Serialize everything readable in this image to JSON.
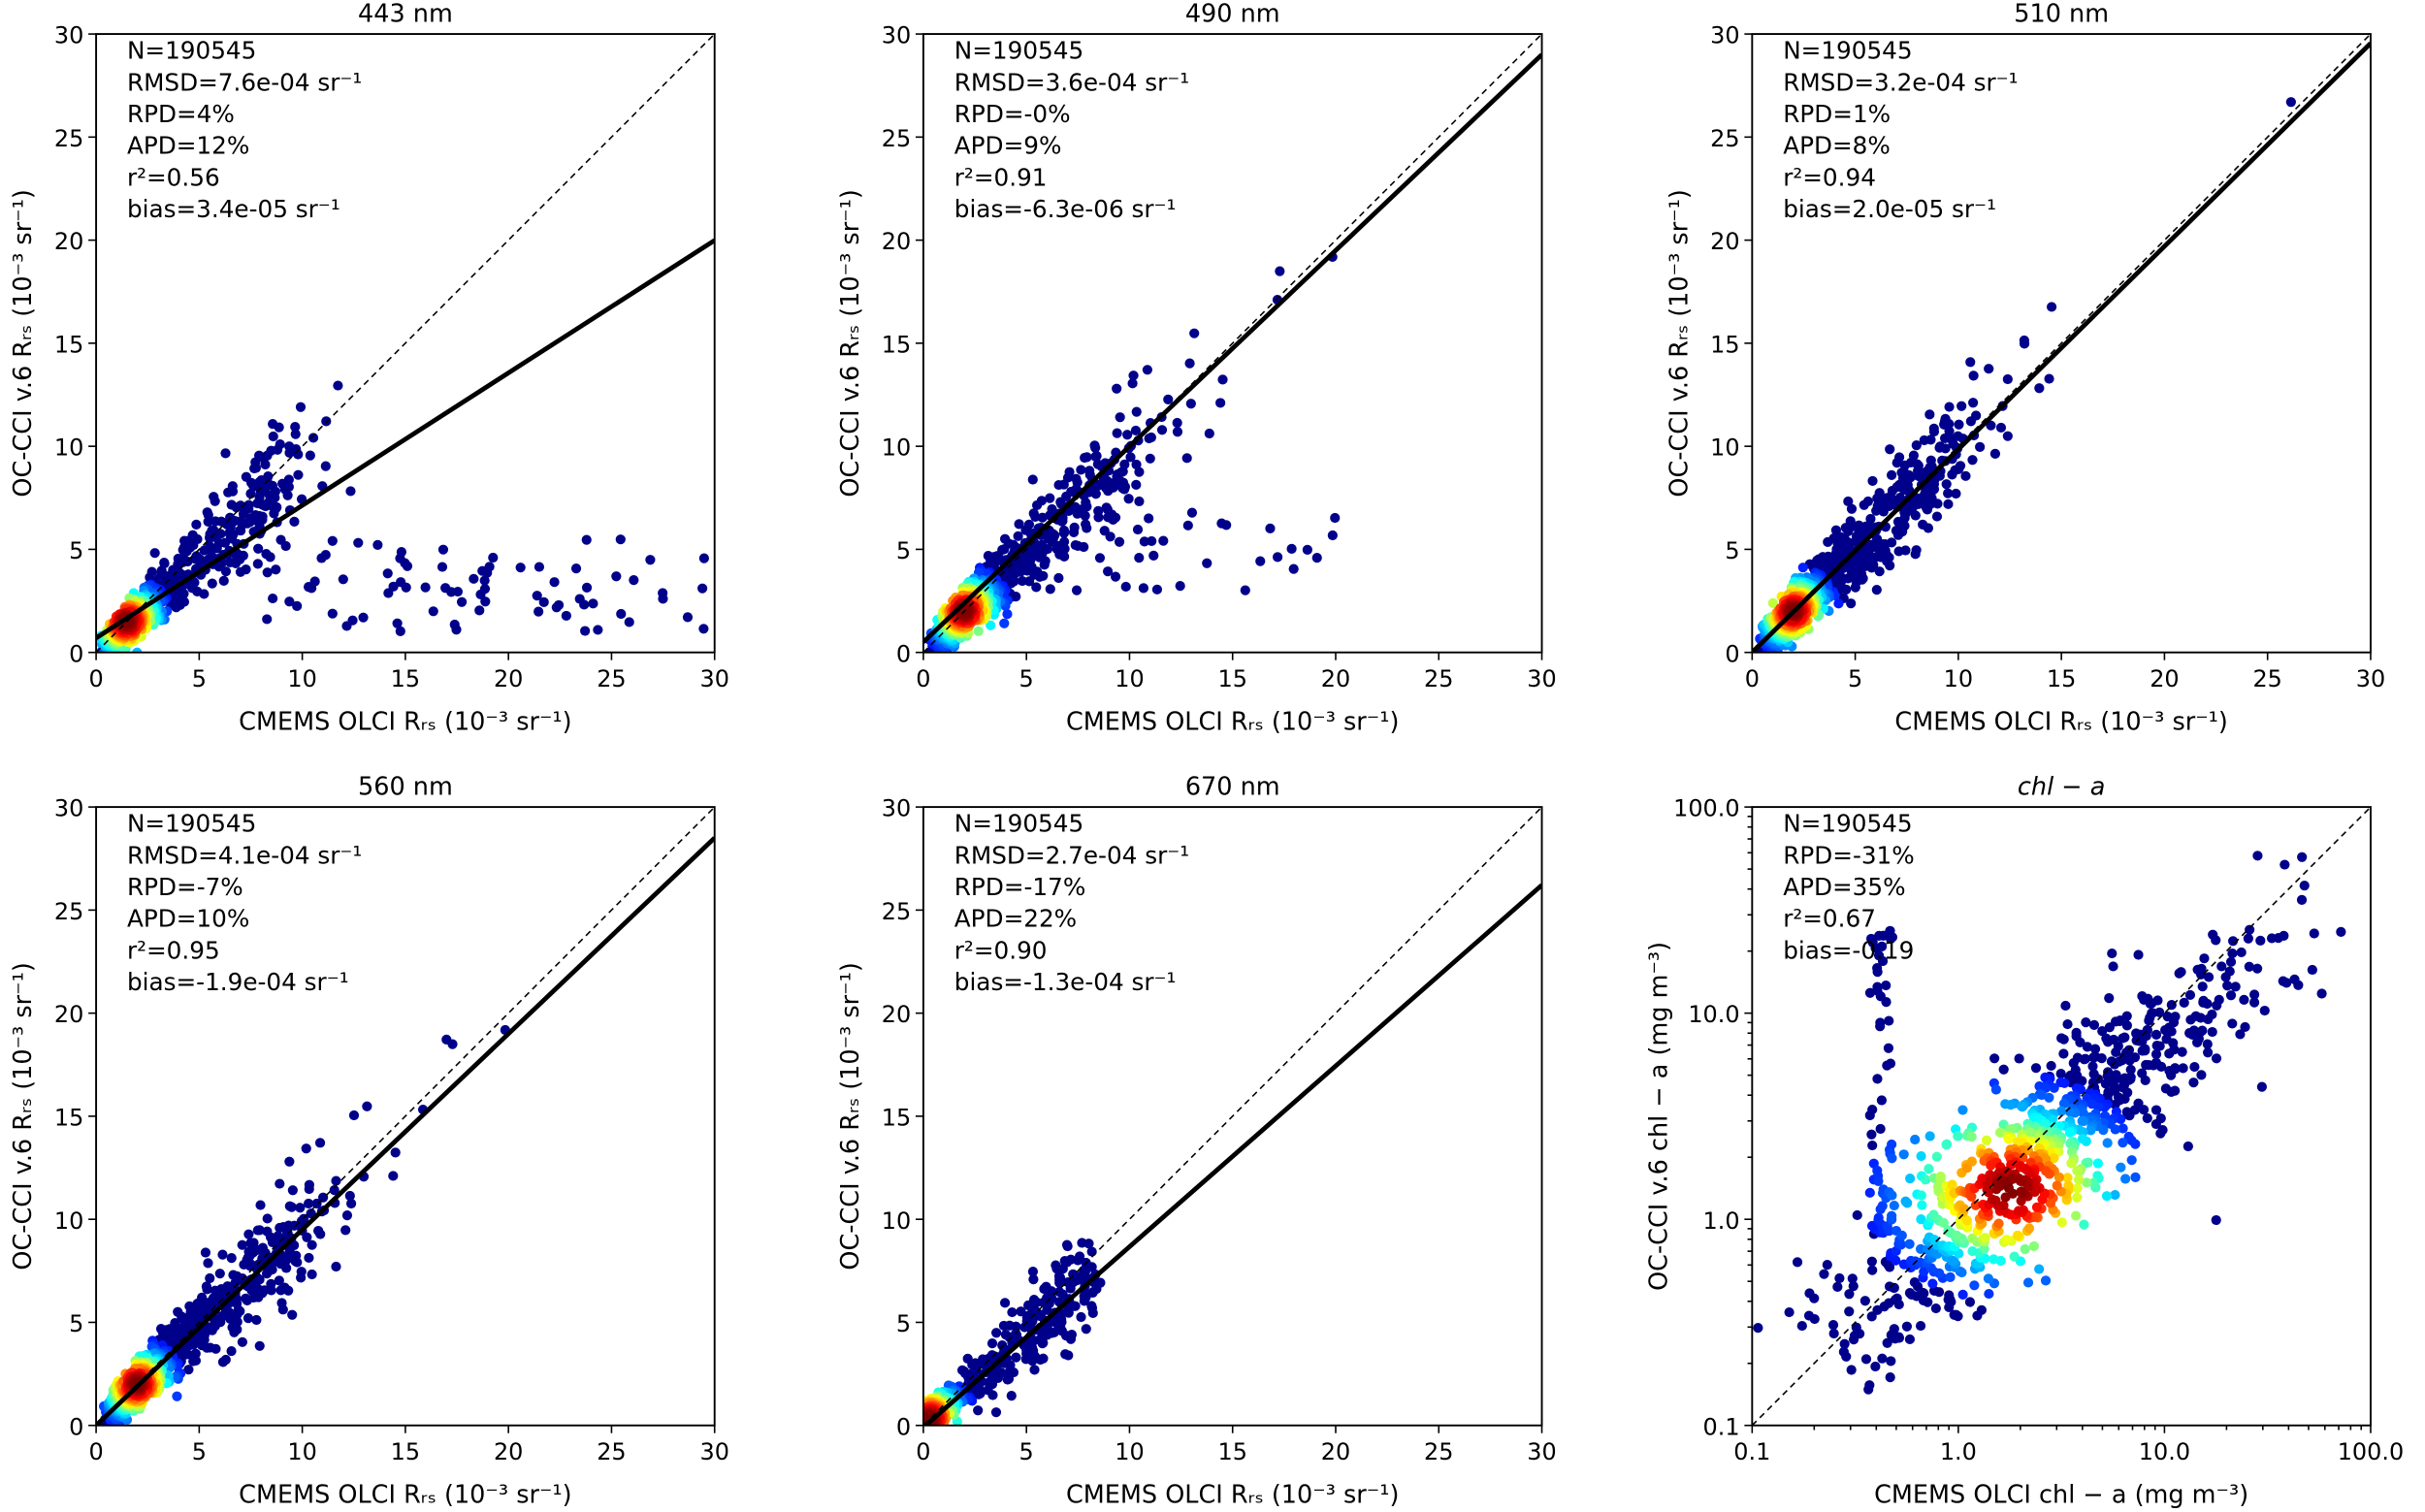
{
  "chart_data": [
    {
      "type": "scatter",
      "title": "443 nm",
      "xlabel": "CMEMS OLCI Rᵣₛ (10⁻³ sr⁻¹)",
      "ylabel": "OC-CCI v.6 Rᵣₛ (10⁻³ sr⁻¹)",
      "scale": "linear",
      "xlim": [
        0,
        30
      ],
      "ylim": [
        0,
        30
      ],
      "xticks": [
        "0",
        "5",
        "10",
        "15",
        "20",
        "25",
        "30"
      ],
      "yticks": [
        "0",
        "5",
        "10",
        "15",
        "20",
        "25",
        "30"
      ],
      "stats": [
        "N=190545",
        "RMSD=7.6e-04 sr⁻¹",
        "RPD=4%",
        "APD=12%",
        "r²=0.56",
        "bias=3.4e-05 sr⁻¹"
      ],
      "fit": {
        "slope": 0.643,
        "intercept": 0.7
      },
      "one_to_one": true,
      "density_center": [
        1.5,
        1.5
      ]
    },
    {
      "type": "scatter",
      "title": "490 nm",
      "xlabel": "CMEMS OLCI Rᵣₛ (10⁻³ sr⁻¹)",
      "ylabel": "OC-CCI v.6 Rᵣₛ (10⁻³ sr⁻¹)",
      "scale": "linear",
      "xlim": [
        0,
        30
      ],
      "ylim": [
        0,
        30
      ],
      "xticks": [
        "0",
        "5",
        "10",
        "15",
        "20",
        "25",
        "30"
      ],
      "yticks": [
        "0",
        "5",
        "10",
        "15",
        "20",
        "25",
        "30"
      ],
      "stats": [
        "N=190545",
        "RMSD=3.6e-04 sr⁻¹",
        "RPD=-0%",
        "APD=9%",
        "r²=0.91",
        "bias=-6.3e-06 sr⁻¹"
      ],
      "fit": {
        "slope": 0.95,
        "intercept": 0.5
      },
      "one_to_one": true,
      "density_center": [
        2.0,
        2.0
      ]
    },
    {
      "type": "scatter",
      "title": "510 nm",
      "xlabel": "CMEMS OLCI Rᵣₛ (10⁻³ sr⁻¹)",
      "ylabel": "OC-CCI v.6 Rᵣₛ (10⁻³ sr⁻¹)",
      "scale": "linear",
      "xlim": [
        0,
        30
      ],
      "ylim": [
        0,
        30
      ],
      "xticks": [
        "0",
        "5",
        "10",
        "15",
        "20",
        "25",
        "30"
      ],
      "yticks": [
        "0",
        "5",
        "10",
        "15",
        "20",
        "25",
        "30"
      ],
      "stats": [
        "N=190545",
        "RMSD=3.2e-04 sr⁻¹",
        "RPD=1%",
        "APD=8%",
        "r²=0.94",
        "bias=2.0e-05 sr⁻¹"
      ],
      "fit": {
        "slope": 0.985,
        "intercept": 0.0
      },
      "one_to_one": true,
      "density_center": [
        2.0,
        2.0
      ]
    },
    {
      "type": "scatter",
      "title": "560 nm",
      "xlabel": "CMEMS OLCI Rᵣₛ (10⁻³ sr⁻¹)",
      "ylabel": "OC-CCI v.6 Rᵣₛ (10⁻³ sr⁻¹)",
      "scale": "linear",
      "xlim": [
        0,
        30
      ],
      "ylim": [
        0,
        30
      ],
      "xticks": [
        "0",
        "5",
        "10",
        "15",
        "20",
        "25",
        "30"
      ],
      "yticks": [
        "0",
        "5",
        "10",
        "15",
        "20",
        "25",
        "30"
      ],
      "stats": [
        "N=190545",
        "RMSD=4.1e-04 sr⁻¹",
        "RPD=-7%",
        "APD=10%",
        "r²=0.95",
        "bias=-1.9e-04 sr⁻¹"
      ],
      "fit": {
        "slope": 0.95,
        "intercept": 0.0
      },
      "one_to_one": true,
      "density_center": [
        2.0,
        2.0
      ]
    },
    {
      "type": "scatter",
      "title": "670 nm",
      "xlabel": "CMEMS OLCI Rᵣₛ (10⁻³ sr⁻¹)",
      "ylabel": "OC-CCI v.6 Rᵣₛ (10⁻³ sr⁻¹)",
      "scale": "linear",
      "xlim": [
        0,
        30
      ],
      "ylim": [
        0,
        30
      ],
      "xticks": [
        "0",
        "5",
        "10",
        "15",
        "20",
        "25",
        "30"
      ],
      "yticks": [
        "0",
        "5",
        "10",
        "15",
        "20",
        "25",
        "30"
      ],
      "stats": [
        "N=190545",
        "RMSD=2.7e-04 sr⁻¹",
        "RPD=-17%",
        "APD=22%",
        "r²=0.90",
        "bias=-1.3e-04 sr⁻¹"
      ],
      "fit": {
        "slope": 0.877,
        "intercept": -0.1
      },
      "one_to_one": true,
      "density_center": [
        0.3,
        0.3
      ]
    },
    {
      "type": "scatter",
      "title": "chl − a",
      "xlabel": "CMEMS OLCI chl − a (mg m⁻³)",
      "ylabel": "OC-CCI v.6 chl − a (mg m⁻³)",
      "scale": "log",
      "xlim": [
        0.1,
        100
      ],
      "ylim": [
        0.1,
        100
      ],
      "xticks": [
        "0.1",
        "1.0",
        "10.0",
        "100.0"
      ],
      "yticks": [
        "0.1",
        "1.0",
        "10.0",
        "100.0"
      ],
      "stats": [
        "N=190545",
        "RPD=-31%",
        "APD=35%",
        "r²=0.67",
        "bias=-0.19"
      ],
      "fit": null,
      "one_to_one": true,
      "density_center": [
        1.8,
        1.4
      ]
    }
  ],
  "colors": {
    "low_density": "#00008b",
    "axis": "#000000"
  }
}
